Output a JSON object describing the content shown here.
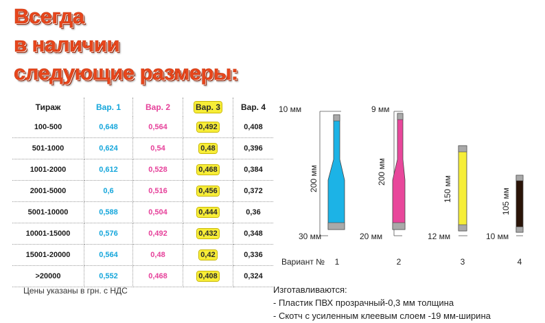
{
  "headline": [
    "Всегда",
    "в наличии",
    "следующие размеры:"
  ],
  "table": {
    "headers": [
      "Тираж",
      "Вар. 1",
      "Вар. 2",
      "Вар. 3",
      "Вар. 4"
    ],
    "rows": [
      [
        "100-500",
        "0,648",
        "0,564",
        "0,492",
        "0,408"
      ],
      [
        "501-1000",
        "0,624",
        "0,54",
        "0,48",
        "0,396"
      ],
      [
        "1001-2000",
        "0,612",
        "0,528",
        "0,468",
        "0,384"
      ],
      [
        "2001-5000",
        "0,6",
        "0,516",
        "0,456",
        "0,372"
      ],
      [
        "5001-10000",
        "0,588",
        "0,504",
        "0,444",
        "0,36"
      ],
      [
        "10001-15000",
        "0,576",
        "0,492",
        "0,432",
        "0,348"
      ],
      [
        "15001-20000",
        "0,564",
        "0,48",
        "0,42",
        "0,336"
      ],
      [
        ">20000",
        "0,552",
        "0,468",
        "0,408",
        "0,324"
      ]
    ]
  },
  "note": "Цены указаны в грн. с НДС",
  "variants": {
    "label": "Вариант №",
    "items": [
      {
        "number": "1",
        "top_width": "10 мм",
        "length": "200 мм",
        "bottom_width": "30 мм",
        "color": "#1cb3e6"
      },
      {
        "number": "2",
        "top_width": "9 мм",
        "length": "200 мм",
        "bottom_width": "20 мм",
        "color": "#e8479b"
      },
      {
        "number": "3",
        "length": "150 мм",
        "bottom_width": "12 мм",
        "color": "#f6ee38"
      },
      {
        "number": "4",
        "length": "105 мм",
        "bottom_width": "10 мм",
        "color": "#2a1408"
      }
    ]
  },
  "manufacturing": {
    "title": "Изготавливаются:",
    "lines": [
      "- Пластик ПВХ прозрачный-0,3 мм толщина",
      "- Скотч с усиленным клеевым слоем -19 мм-ширина"
    ]
  },
  "colors": {
    "headline": "#e8461c",
    "var1": "#15a6db",
    "var2": "#e6409a",
    "var3_highlight": "#f7ed37",
    "tab_gray": "#a9a9a9"
  }
}
